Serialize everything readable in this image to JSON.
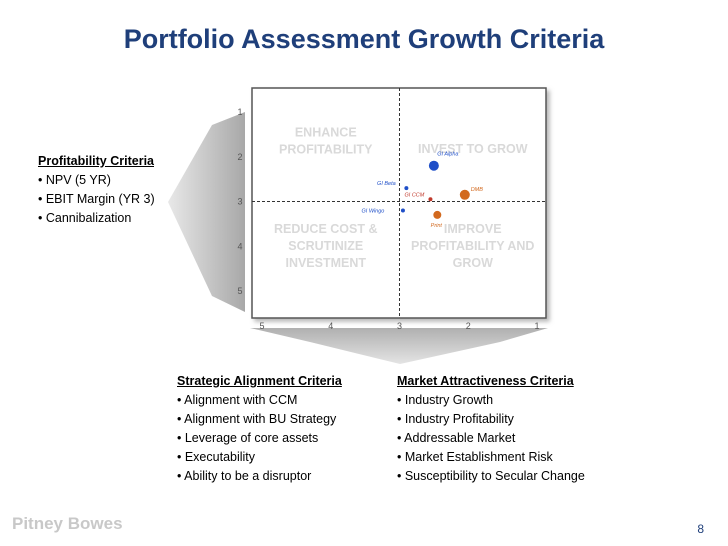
{
  "title": "Portfolio Assessment Growth Criteria",
  "profitability": {
    "heading": "Profitability Criteria",
    "items": [
      "• NPV (5 YR)",
      "• EBIT Margin (YR 3)",
      "• Cannibalization"
    ]
  },
  "strategic": {
    "heading": "Strategic Alignment Criteria",
    "items": [
      "• Alignment with CCM",
      "• Alignment with BU Strategy",
      "• Leverage of core assets",
      "• Executability",
      "• Ability to be a disruptor"
    ]
  },
  "market": {
    "heading": "Market Attractiveness Criteria",
    "items": [
      "• Industry Growth",
      "• Industry Profitability",
      "• Addressable Market",
      "• Market Establishment Risk",
      "• Susceptibility to Secular Change"
    ]
  },
  "chart_data": {
    "type": "scatter",
    "xlim": [
      5,
      1
    ],
    "ylim": [
      1,
      5
    ],
    "x_ticks": [
      "5",
      "4",
      "3",
      "2",
      "1"
    ],
    "y_ticks": [
      "1",
      "2",
      "3",
      "4",
      "5"
    ],
    "dividers": {
      "x": 3,
      "y": 3
    },
    "quadrants": [
      {
        "name": "ENHANCE PROFITABILITY",
        "lines": [
          "ENHANCE",
          "PROFITABILITY"
        ]
      },
      {
        "name": "INVEST TO GROW",
        "lines": [
          "INVEST TO GROW"
        ]
      },
      {
        "name": "REDUCE COST & SCRUTINIZE INVESTMENT",
        "lines": [
          "REDUCE COST &",
          "SCRUTINIZE",
          "INVESTMENT"
        ]
      },
      {
        "name": "IMPROVE PROFITABILITY AND GROW",
        "lines": [
          "IMPROVE",
          "PROFITABILITY AND",
          "GROW"
        ]
      }
    ],
    "points": [
      {
        "label": "GI Alpha",
        "x": 2.5,
        "y": 2.2,
        "color": "#1f4fc8"
      },
      {
        "label": "GI Beta",
        "x": 2.9,
        "y": 2.7,
        "color": "#1f4fc8"
      },
      {
        "label": "GI CCM",
        "x": 2.55,
        "y": 2.95,
        "color": "#c0392b"
      },
      {
        "label": "DMB",
        "x": 2.05,
        "y": 2.85,
        "color": "#d2691e"
      },
      {
        "label": "GI Wingo",
        "x": 2.95,
        "y": 3.2,
        "color": "#1f4fc8"
      },
      {
        "label": "Print",
        "x": 2.45,
        "y": 3.3,
        "color": "#d2691e"
      }
    ]
  },
  "footer": {
    "logo": "Pitney Bowes",
    "page": "8"
  }
}
